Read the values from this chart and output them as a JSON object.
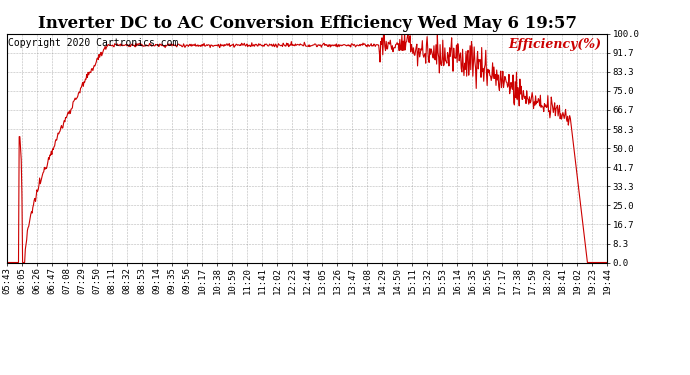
{
  "title": "Inverter DC to AC Conversion Efficiency Wed May 6 19:57",
  "copyright": "Copyright 2020 Cartronics.com",
  "legend_label": "Efficiency(%)",
  "line_color": "#cc0000",
  "background_color": "#ffffff",
  "grid_color": "#888888",
  "ylim": [
    0.0,
    100.0
  ],
  "yticks": [
    0.0,
    8.3,
    16.7,
    25.0,
    33.3,
    41.7,
    50.0,
    58.3,
    66.7,
    75.0,
    83.3,
    91.7,
    100.0
  ],
  "ytick_labels": [
    "0.0",
    "8.3",
    "16.7",
    "25.0",
    "33.3",
    "41.7",
    "50.0",
    "58.3",
    "66.7",
    "75.0",
    "83.3",
    "91.7",
    "100.0"
  ],
  "xtick_labels": [
    "05:43",
    "06:05",
    "06:26",
    "06:47",
    "07:08",
    "07:29",
    "07:50",
    "08:11",
    "08:32",
    "08:53",
    "09:14",
    "09:35",
    "09:56",
    "10:17",
    "10:38",
    "10:59",
    "11:20",
    "11:41",
    "12:02",
    "12:23",
    "12:44",
    "13:05",
    "13:26",
    "13:47",
    "14:08",
    "14:29",
    "14:50",
    "15:11",
    "15:32",
    "15:53",
    "16:14",
    "16:35",
    "16:56",
    "17:17",
    "17:38",
    "17:59",
    "18:20",
    "18:41",
    "19:02",
    "19:23",
    "19:44"
  ],
  "title_fontsize": 12,
  "copyright_fontsize": 7,
  "legend_fontsize": 9,
  "tick_fontsize": 6.5,
  "linewidth": 0.8
}
